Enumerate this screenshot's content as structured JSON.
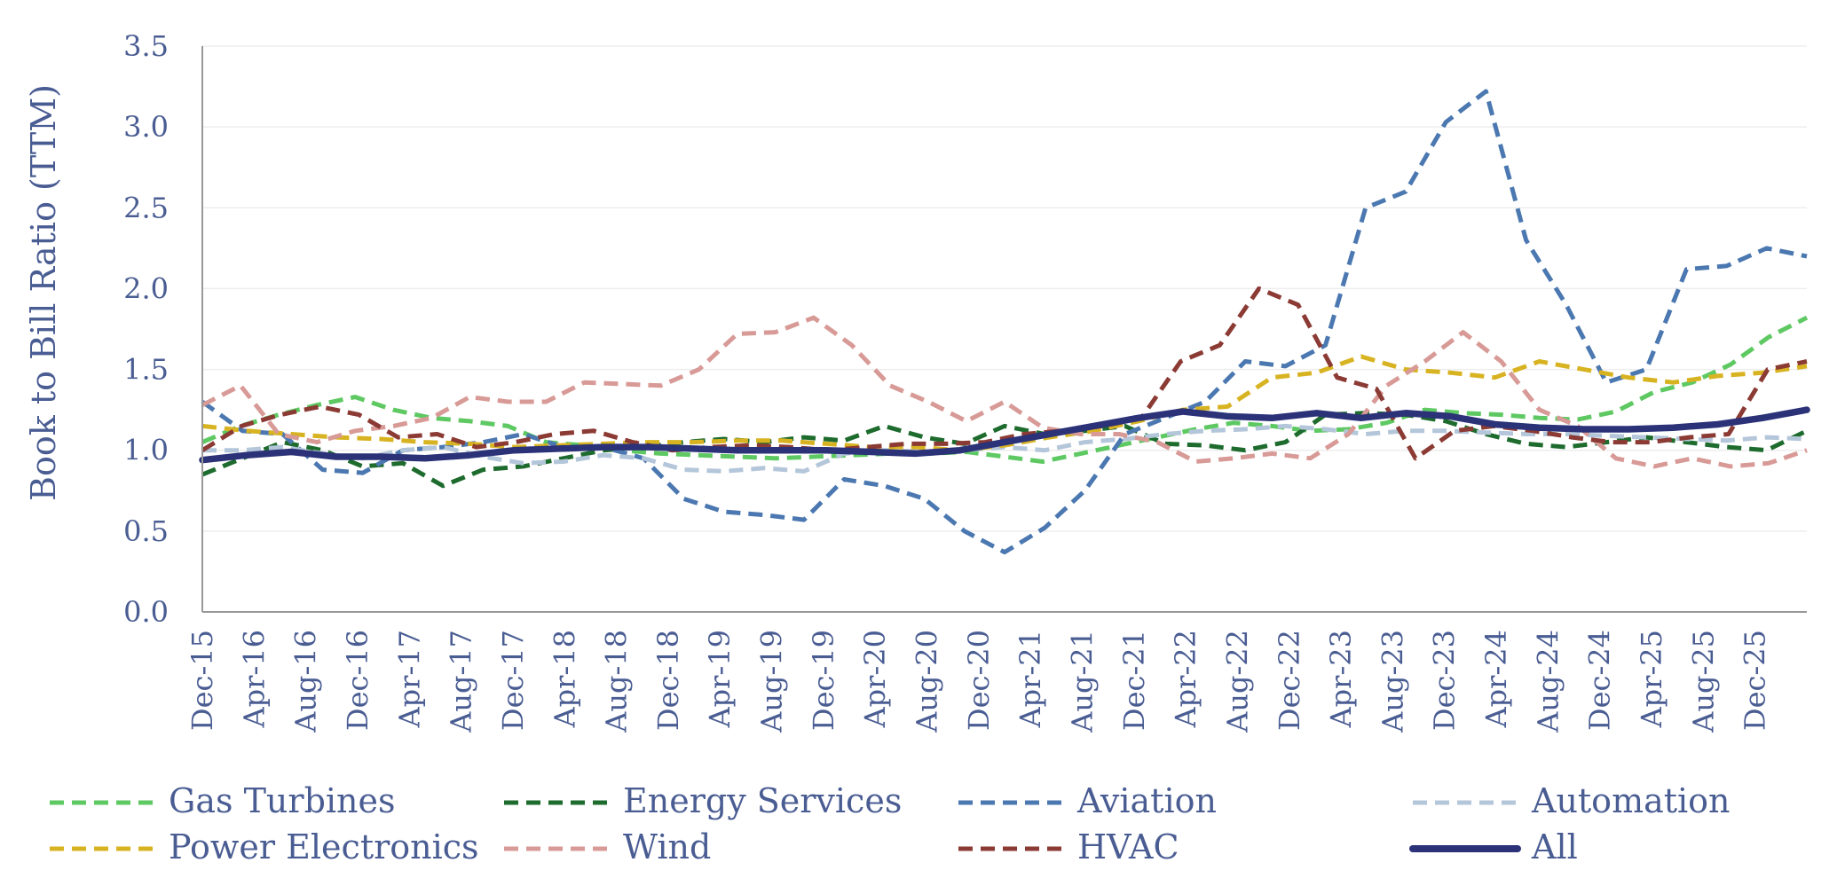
{
  "chart_data": {
    "type": "line",
    "ylabel": "Book to Bill Ratio (TTM)",
    "ylim": [
      0,
      3.5
    ],
    "yticks": [
      "0.0",
      "0.5",
      "1.0",
      "1.5",
      "2.0",
      "2.5",
      "3.0",
      "3.5"
    ],
    "grid": true,
    "legend": "bottom",
    "x_tick_labels": [
      "Dec-15",
      "Apr-16",
      "Aug-16",
      "Dec-16",
      "Apr-17",
      "Aug-17",
      "Dec-17",
      "Apr-18",
      "Aug-18",
      "Dec-18",
      "Apr-19",
      "Aug-19",
      "Dec-19",
      "Apr-20",
      "Aug-20",
      "Dec-20",
      "Apr-21",
      "Aug-21",
      "Dec-21",
      "Apr-22",
      "Aug-22",
      "Dec-22",
      "Apr-23",
      "Aug-23",
      "Dec-23",
      "Apr-24",
      "Aug-24",
      "Dec-24",
      "Apr-25",
      "Aug-25",
      "Dec-25"
    ],
    "x_start": "Dec-15",
    "x_end": "Apr-26",
    "series": [
      {
        "name": "Gas Turbines",
        "color": "#5ec962",
        "dashed": true,
        "values": [
          1.05,
          1.15,
          1.22,
          1.28,
          1.33,
          1.25,
          1.2,
          1.18,
          1.15,
          1.05,
          1.03,
          1.0,
          0.98,
          0.97,
          0.96,
          0.95,
          0.96,
          0.97,
          0.98,
          0.98,
          0.99,
          0.96,
          0.93,
          0.98,
          1.03,
          1.08,
          1.13,
          1.17,
          1.15,
          1.12,
          1.13,
          1.17,
          1.25,
          1.23,
          1.22,
          1.2,
          1.19,
          1.24,
          1.36,
          1.42,
          1.53,
          1.7,
          1.82
        ]
      },
      {
        "name": "Energy Services",
        "color": "#1e6b2e",
        "dashed": true,
        "values": [
          0.85,
          0.95,
          1.05,
          1.0,
          0.9,
          0.92,
          0.78,
          0.88,
          0.9,
          0.95,
          1.0,
          1.02,
          1.05,
          1.07,
          1.05,
          1.08,
          1.06,
          1.15,
          1.08,
          1.04,
          1.15,
          1.1,
          1.12,
          1.15,
          1.04,
          1.03,
          1.0,
          1.05,
          1.22,
          1.23,
          1.22,
          1.18,
          1.1,
          1.04,
          1.02,
          1.05,
          1.08,
          1.05,
          1.02,
          1.0,
          1.12
        ]
      },
      {
        "name": "Aviation",
        "color": "#4b78b0",
        "dashed": true,
        "values": [
          1.3,
          1.12,
          1.1,
          0.88,
          0.86,
          1.0,
          1.02,
          1.05,
          1.1,
          1.02,
          1.02,
          0.95,
          0.7,
          0.62,
          0.6,
          0.57,
          0.82,
          0.78,
          0.7,
          0.5,
          0.37,
          0.52,
          0.75,
          1.1,
          1.2,
          1.3,
          1.55,
          1.52,
          1.65,
          2.5,
          2.6,
          3.03,
          3.22,
          2.3,
          1.9,
          1.42,
          1.5,
          2.12,
          2.14,
          2.25,
          2.2
        ]
      },
      {
        "name": "Automation",
        "color": "#b4c6da",
        "dashed": true,
        "values": [
          1.0,
          1.0,
          1.02,
          0.98,
          0.95,
          1.0,
          1.02,
          0.96,
          0.92,
          0.93,
          0.97,
          0.95,
          0.88,
          0.87,
          0.89,
          0.87,
          0.98,
          1.0,
          0.99,
          1.0,
          1.02,
          1.0,
          1.05,
          1.07,
          1.1,
          1.12,
          1.13,
          1.15,
          1.13,
          1.1,
          1.12,
          1.12,
          1.11,
          1.1,
          1.1,
          1.09,
          1.08,
          1.07,
          1.06,
          1.08,
          1.07
        ]
      },
      {
        "name": "Power Electronics",
        "color": "#d8b321",
        "dashed": true,
        "values": [
          1.15,
          1.12,
          1.1,
          1.08,
          1.07,
          1.05,
          1.04,
          1.02,
          1.03,
          1.04,
          1.05,
          1.05,
          1.06,
          1.06,
          1.04,
          1.02,
          1.02,
          1.0,
          1.03,
          1.08,
          1.12,
          1.18,
          1.25,
          1.27,
          1.45,
          1.48,
          1.58,
          1.5,
          1.48,
          1.45,
          1.55,
          1.5,
          1.45,
          1.42,
          1.46,
          1.48,
          1.52
        ]
      },
      {
        "name": "Wind",
        "color": "#d89a96",
        "dashed": true,
        "values": [
          1.28,
          1.4,
          1.1,
          1.05,
          1.12,
          1.15,
          1.2,
          1.33,
          1.3,
          1.3,
          1.42,
          1.41,
          1.4,
          1.5,
          1.72,
          1.73,
          1.82,
          1.65,
          1.4,
          1.3,
          1.18,
          1.3,
          1.14,
          1.1,
          1.1,
          1.05,
          0.93,
          0.95,
          0.98,
          0.95,
          1.1,
          1.4,
          1.55,
          1.73,
          1.55,
          1.25,
          1.15,
          0.95,
          0.9,
          0.95,
          0.9,
          0.92,
          1.0
        ]
      },
      {
        "name": "HVAC",
        "color": "#8b3a34",
        "dashed": true,
        "values": [
          1.0,
          1.15,
          1.22,
          1.27,
          1.22,
          1.08,
          1.1,
          1.02,
          1.05,
          1.1,
          1.12,
          1.05,
          1.0,
          1.02,
          1.03,
          1.02,
          1.0,
          1.02,
          1.04,
          1.04,
          1.05,
          1.1,
          1.12,
          1.15,
          1.2,
          1.55,
          1.65,
          2.0,
          1.9,
          1.45,
          1.38,
          0.95,
          1.12,
          1.15,
          1.12,
          1.08,
          1.05,
          1.05,
          1.08,
          1.1,
          1.5,
          1.55
        ]
      },
      {
        "name": "All",
        "color": "#2b3278",
        "dashed": false,
        "values": [
          0.94,
          0.97,
          0.99,
          0.96,
          0.96,
          0.95,
          0.97,
          1.0,
          1.01,
          1.02,
          1.02,
          1.01,
          1.0,
          1.0,
          1.0,
          0.99,
          0.98,
          1.0,
          1.05,
          1.1,
          1.15,
          1.2,
          1.24,
          1.21,
          1.2,
          1.23,
          1.2,
          1.23,
          1.21,
          1.16,
          1.14,
          1.13,
          1.13,
          1.14,
          1.16,
          1.2,
          1.25
        ]
      }
    ]
  }
}
